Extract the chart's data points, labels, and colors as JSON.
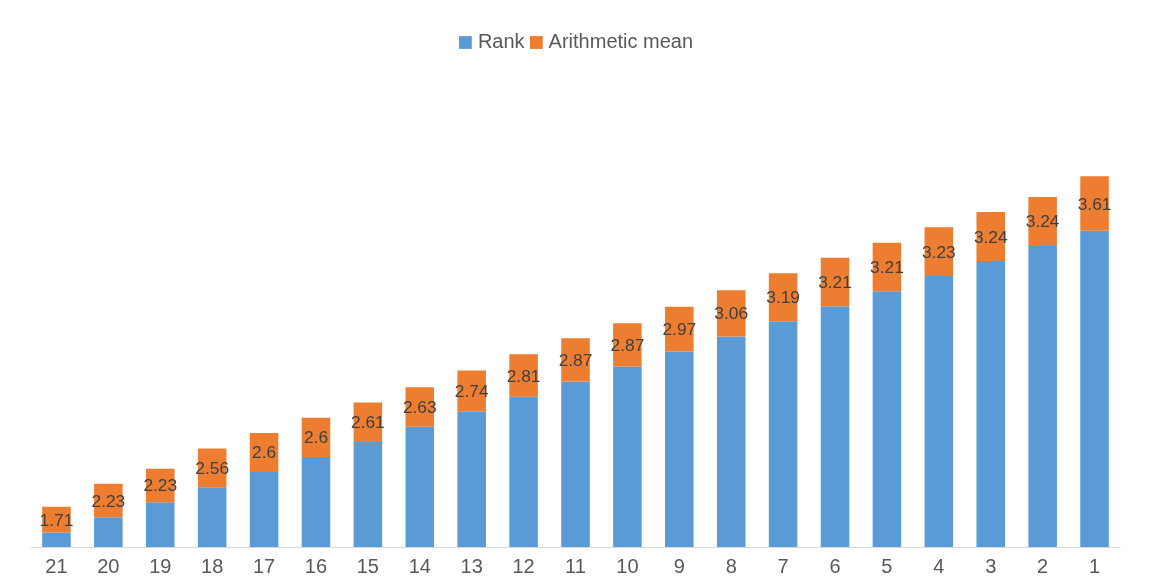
{
  "chart_data": {
    "type": "bar",
    "stacked": true,
    "categories": [
      "21",
      "20",
      "19",
      "18",
      "17",
      "16",
      "15",
      "14",
      "13",
      "12",
      "11",
      "10",
      "9",
      "8",
      "7",
      "6",
      "5",
      "4",
      "3",
      "2",
      "1"
    ],
    "series": [
      {
        "name": "Rank",
        "color": "#5b9bd5",
        "values": [
          1,
          2,
          3,
          4,
          5,
          6,
          7,
          8,
          9,
          10,
          11,
          12,
          13,
          14,
          15,
          16,
          17,
          18,
          19,
          20,
          21
        ]
      },
      {
        "name": "Arithmetic mean",
        "color": "#ed7d31",
        "values": [
          1.71,
          2.23,
          2.23,
          2.56,
          2.6,
          2.6,
          2.61,
          2.63,
          2.74,
          2.81,
          2.87,
          2.87,
          2.97,
          3.06,
          3.19,
          3.21,
          3.21,
          3.23,
          3.24,
          3.24,
          3.61
        ],
        "value_labels": [
          "1.71",
          "2.23",
          "2.23",
          "2.56",
          "2.6",
          "2.6",
          "2.61",
          "2.63",
          "2.74",
          "2.81",
          "2.87",
          "2.87",
          "2.97",
          "3.06",
          "3.19",
          "3.21",
          "3.21",
          "3.23",
          "3.24",
          "3.24",
          "3.61"
        ]
      }
    ],
    "grid": false,
    "legend": "top",
    "tick_labels": "x"
  }
}
